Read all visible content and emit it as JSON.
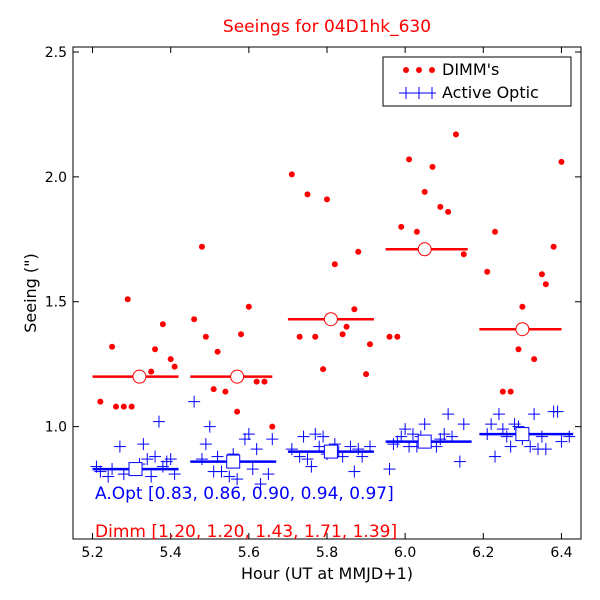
{
  "chart_data": {
    "type": "scatter",
    "title": "Seeings for 04D1hk_630",
    "xlabel": "Hour (UT at MMJD+1)",
    "ylabel": "Seeing (\")",
    "xlim": [
      5.15,
      6.45
    ],
    "ylim": [
      0.55,
      2.52
    ],
    "xticks": [
      5.2,
      5.4,
      5.6,
      5.8,
      6.0,
      6.2,
      6.4
    ],
    "xtick_labels": [
      "5.2",
      "5.4",
      "5.6",
      "5.8",
      "6.0",
      "6.2",
      "6.4"
    ],
    "yticks": [
      1.0,
      1.5,
      2.0,
      2.5
    ],
    "ytick_labels": [
      "1.0",
      "1.5",
      "2.0",
      "2.5"
    ],
    "grid": false,
    "legend_position": "top-right",
    "series": [
      {
        "name": "DIMM's",
        "color": "#ff0000",
        "marker": "dot",
        "points": [
          [
            5.22,
            1.1
          ],
          [
            5.25,
            1.32
          ],
          [
            5.26,
            1.08
          ],
          [
            5.28,
            1.08
          ],
          [
            5.29,
            1.51
          ],
          [
            5.3,
            1.08
          ],
          [
            5.35,
            1.22
          ],
          [
            5.36,
            1.31
          ],
          [
            5.38,
            1.41
          ],
          [
            5.4,
            1.27
          ],
          [
            5.41,
            1.24
          ],
          [
            5.46,
            1.43
          ],
          [
            5.48,
            1.72
          ],
          [
            5.49,
            1.36
          ],
          [
            5.51,
            1.15
          ],
          [
            5.52,
            1.3
          ],
          [
            5.54,
            1.14
          ],
          [
            5.57,
            1.06
          ],
          [
            5.58,
            1.37
          ],
          [
            5.6,
            1.48
          ],
          [
            5.62,
            1.18
          ],
          [
            5.64,
            1.18
          ],
          [
            5.66,
            1.0
          ],
          [
            5.71,
            2.01
          ],
          [
            5.73,
            1.36
          ],
          [
            5.75,
            1.93
          ],
          [
            5.77,
            1.36
          ],
          [
            5.79,
            1.23
          ],
          [
            5.8,
            1.91
          ],
          [
            5.82,
            1.65
          ],
          [
            5.84,
            1.37
          ],
          [
            5.85,
            1.4
          ],
          [
            5.87,
            1.47
          ],
          [
            5.88,
            1.7
          ],
          [
            5.9,
            1.21
          ],
          [
            5.91,
            1.33
          ],
          [
            5.96,
            1.36
          ],
          [
            5.98,
            1.36
          ],
          [
            5.99,
            1.8
          ],
          [
            6.01,
            2.07
          ],
          [
            6.03,
            1.78
          ],
          [
            6.05,
            1.94
          ],
          [
            6.07,
            2.04
          ],
          [
            6.09,
            1.88
          ],
          [
            6.11,
            1.86
          ],
          [
            6.13,
            2.17
          ],
          [
            6.15,
            1.69
          ],
          [
            6.21,
            1.62
          ],
          [
            6.23,
            1.78
          ],
          [
            6.25,
            1.14
          ],
          [
            6.27,
            1.14
          ],
          [
            6.29,
            1.31
          ],
          [
            6.3,
            1.48
          ],
          [
            6.33,
            1.27
          ],
          [
            6.35,
            1.61
          ],
          [
            6.36,
            1.57
          ],
          [
            6.38,
            1.72
          ],
          [
            6.4,
            2.06
          ]
        ],
        "bin_means": [
          {
            "x": 5.32,
            "x_from": 5.2,
            "x_to": 5.42,
            "value": 1.2
          },
          {
            "x": 5.57,
            "x_from": 5.45,
            "x_to": 5.66,
            "value": 1.2
          },
          {
            "x": 5.81,
            "x_from": 5.7,
            "x_to": 5.92,
            "value": 1.43
          },
          {
            "x": 6.05,
            "x_from": 5.95,
            "x_to": 6.16,
            "value": 1.71
          },
          {
            "x": 6.3,
            "x_from": 6.19,
            "x_to": 6.4,
            "value": 1.39
          }
        ]
      },
      {
        "name": "Active Optic",
        "color": "#0000ff",
        "marker": "plus",
        "points": [
          [
            5.21,
            0.84
          ],
          [
            5.22,
            0.82
          ],
          [
            5.24,
            0.8
          ],
          [
            5.25,
            0.83
          ],
          [
            5.27,
            0.92
          ],
          [
            5.28,
            0.81
          ],
          [
            5.3,
            0.83
          ],
          [
            5.32,
            0.85
          ],
          [
            5.33,
            0.93
          ],
          [
            5.34,
            0.87
          ],
          [
            5.35,
            0.8
          ],
          [
            5.36,
            0.88
          ],
          [
            5.37,
            1.02
          ],
          [
            5.38,
            0.84
          ],
          [
            5.39,
            0.86
          ],
          [
            5.4,
            0.87
          ],
          [
            5.41,
            0.81
          ],
          [
            5.46,
            1.1
          ],
          [
            5.48,
            0.87
          ],
          [
            5.49,
            0.93
          ],
          [
            5.5,
            1.0
          ],
          [
            5.51,
            0.82
          ],
          [
            5.52,
            0.88
          ],
          [
            5.53,
            0.82
          ],
          [
            5.55,
            0.8
          ],
          [
            5.56,
            0.89
          ],
          [
            5.57,
            0.79
          ],
          [
            5.59,
            0.95
          ],
          [
            5.6,
            0.97
          ],
          [
            5.61,
            0.83
          ],
          [
            5.62,
            0.91
          ],
          [
            5.63,
            0.77
          ],
          [
            5.65,
            0.81
          ],
          [
            5.66,
            0.95
          ],
          [
            5.71,
            0.91
          ],
          [
            5.73,
            0.88
          ],
          [
            5.74,
            0.96
          ],
          [
            5.75,
            0.87
          ],
          [
            5.76,
            0.84
          ],
          [
            5.77,
            0.97
          ],
          [
            5.78,
            0.92
          ],
          [
            5.79,
            0.96
          ],
          [
            5.8,
            0.89
          ],
          [
            5.82,
            0.93
          ],
          [
            5.83,
            0.9
          ],
          [
            5.84,
            0.88
          ],
          [
            5.86,
            0.92
          ],
          [
            5.87,
            0.82
          ],
          [
            5.88,
            0.91
          ],
          [
            5.89,
            0.88
          ],
          [
            5.91,
            0.92
          ],
          [
            5.96,
            0.83
          ],
          [
            5.97,
            0.93
          ],
          [
            5.98,
            0.94
          ],
          [
            5.99,
            0.96
          ],
          [
            6.0,
            0.99
          ],
          [
            6.01,
            0.92
          ],
          [
            6.02,
            0.97
          ],
          [
            6.03,
            0.92
          ],
          [
            6.04,
            0.96
          ],
          [
            6.05,
            1.01
          ],
          [
            6.06,
            0.94
          ],
          [
            6.08,
            0.92
          ],
          [
            6.09,
            0.95
          ],
          [
            6.1,
            0.97
          ],
          [
            6.11,
            1.05
          ],
          [
            6.12,
            0.96
          ],
          [
            6.14,
            0.86
          ],
          [
            6.15,
            1.01
          ],
          [
            6.21,
            0.97
          ],
          [
            6.22,
            1.01
          ],
          [
            6.23,
            0.88
          ],
          [
            6.24,
            1.05
          ],
          [
            6.25,
            0.99
          ],
          [
            6.26,
            0.96
          ],
          [
            6.27,
            0.92
          ],
          [
            6.28,
            1.01
          ],
          [
            6.29,
            1.0
          ],
          [
            6.3,
            0.95
          ],
          [
            6.32,
            0.92
          ],
          [
            6.33,
            1.05
          ],
          [
            6.34,
            0.91
          ],
          [
            6.35,
            0.96
          ],
          [
            6.36,
            0.91
          ],
          [
            6.38,
            1.06
          ],
          [
            6.39,
            1.06
          ],
          [
            6.4,
            0.94
          ],
          [
            6.42,
            0.96
          ]
        ],
        "bin_means": [
          {
            "x": 5.31,
            "x_from": 5.2,
            "x_to": 5.42,
            "value": 0.83
          },
          {
            "x": 5.56,
            "x_from": 5.45,
            "x_to": 5.67,
            "value": 0.86
          },
          {
            "x": 5.81,
            "x_from": 5.7,
            "x_to": 5.92,
            "value": 0.9
          },
          {
            "x": 6.05,
            "x_from": 5.95,
            "x_to": 6.17,
            "value": 0.94
          },
          {
            "x": 6.3,
            "x_from": 6.19,
            "x_to": 6.43,
            "value": 0.97
          }
        ]
      }
    ],
    "annotations": [
      {
        "text": "A.Opt [0.83, 0.86, 0.90, 0.94, 0.97]",
        "color": "#0000ff"
      },
      {
        "text": "Dimm [1.20, 1.20, 1.43, 1.71, 1.39]",
        "color": "#ff0000"
      }
    ]
  }
}
